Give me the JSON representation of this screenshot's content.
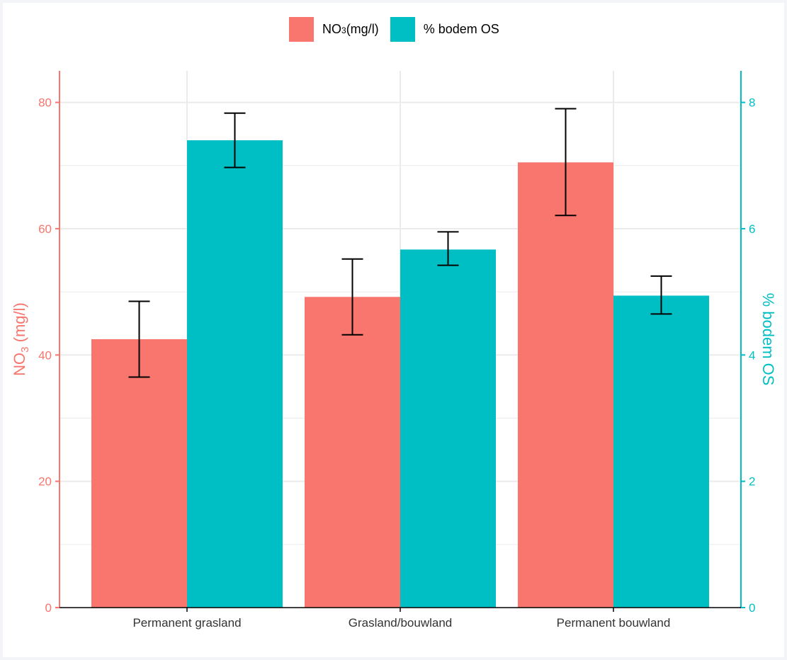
{
  "colors": {
    "no3": "#F8766D",
    "os": "#00BFC4",
    "grid": "#EBEBEB",
    "axis": "#000000",
    "error": "#000000"
  },
  "legend": [
    {
      "prefix": "NO",
      "sub": "3",
      "suffix": " (mg/l)",
      "color": "#F8766D"
    },
    {
      "prefix": "% bodem OS",
      "sub": "",
      "suffix": "",
      "color": "#00BFC4"
    }
  ],
  "chart_data": {
    "type": "bar",
    "categories": [
      "Permanent grasland",
      "Grasland/bouwland",
      "Permanent bouwland"
    ],
    "series": [
      {
        "name": "NO3 (mg/l)",
        "axis": "left",
        "values": [
          42.5,
          49.2,
          70.5
        ],
        "error_low": [
          36.5,
          43.2,
          62.1
        ],
        "error_high": [
          48.5,
          55.2,
          79.0
        ]
      },
      {
        "name": "% bodem OS",
        "axis": "right",
        "values": [
          7.4,
          5.67,
          4.94
        ],
        "error_low": [
          6.97,
          5.42,
          4.65
        ],
        "error_high": [
          7.83,
          5.95,
          5.25
        ]
      }
    ],
    "y_left": {
      "label_prefix": "NO",
      "label_sub": "3",
      "label_suffix": " (mg/l)",
      "ticks": [
        0,
        20,
        40,
        60,
        80
      ],
      "lim": [
        0,
        85
      ]
    },
    "y_right": {
      "label": "% bodem OS",
      "ticks": [
        0,
        2,
        4,
        6,
        8
      ],
      "lim": [
        0,
        8.5
      ]
    },
    "grid": true,
    "legend_position": "top"
  }
}
